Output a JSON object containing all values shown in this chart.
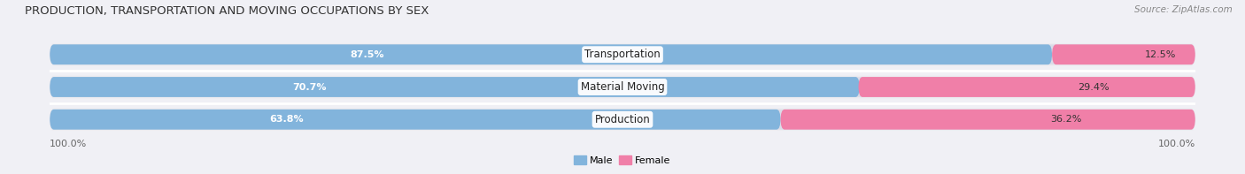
{
  "title": "PRODUCTION, TRANSPORTATION AND MOVING OCCUPATIONS BY SEX",
  "source": "Source: ZipAtlas.com",
  "categories": [
    "Transportation",
    "Material Moving",
    "Production"
  ],
  "male_values": [
    87.5,
    70.7,
    63.8
  ],
  "female_values": [
    12.5,
    29.4,
    36.2
  ],
  "male_color": "#82B4DC",
  "female_color": "#F07FA8",
  "male_label": "Male",
  "female_label": "Female",
  "bar_bg_color": "#DCDCE8",
  "row_bg_color": "#EBEBF0",
  "separator_color": "#FFFFFF",
  "title_fontsize": 9.5,
  "source_fontsize": 7.5,
  "label_fontsize": 8,
  "category_fontsize": 8.5,
  "pct_fontsize": 8,
  "axis_label": "100.0%",
  "fig_bg_color": "#F0F0F5"
}
